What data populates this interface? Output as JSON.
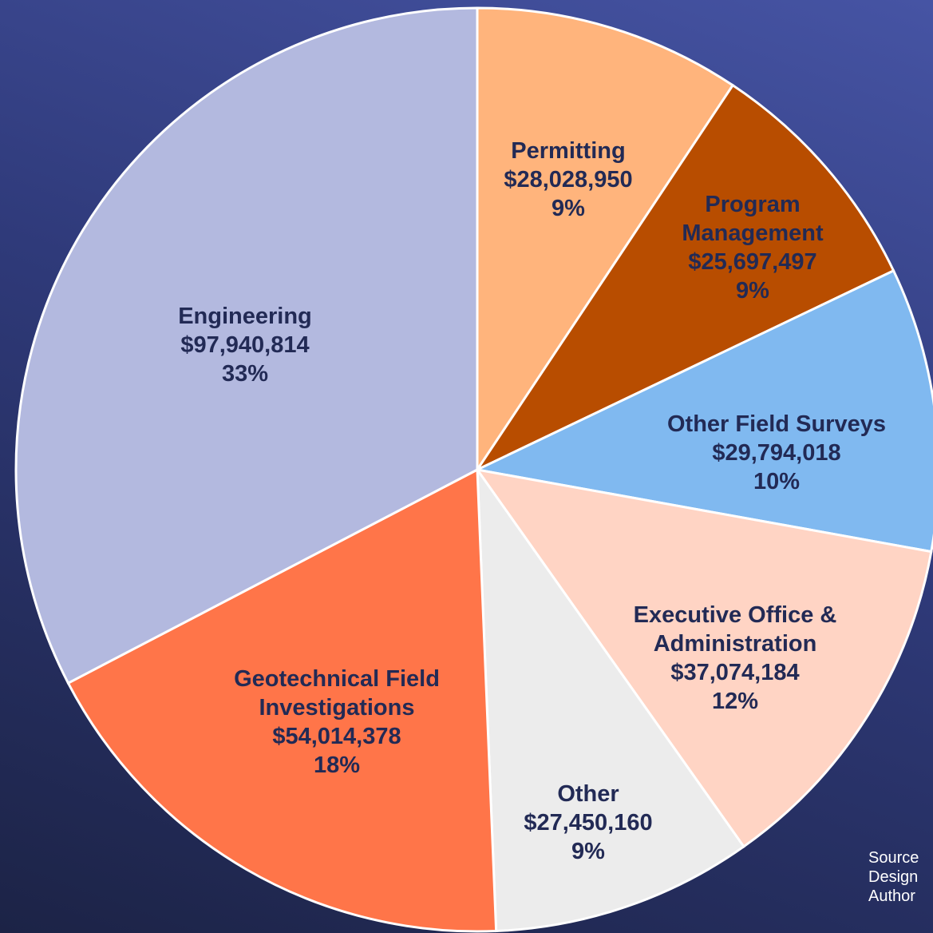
{
  "chart_data": {
    "type": "pie",
    "categories": [
      "Permitting",
      "Program Management",
      "Other Field Surveys",
      "Executive Office & Administration",
      "Other",
      "Geotechnical Field Investigations",
      "Engineering"
    ],
    "values": [
      28028950,
      25697497,
      29794018,
      37074184,
      27450160,
      54014378,
      97940814
    ],
    "value_labels": [
      "$28,028,950",
      "$25,697,497",
      "$29,794,018",
      "$37,074,184",
      "$27,450,160",
      "$54,014,378",
      "$97,940,814"
    ],
    "percent_labels": [
      "9%",
      "9%",
      "10%",
      "12%",
      "9%",
      "18%",
      "33%"
    ],
    "colors": [
      "#ffb47c",
      "#b84d00",
      "#80b9f0",
      "#ffd4c4",
      "#ececec",
      "#ff7549",
      "#b3b9df"
    ],
    "start_angle": 90,
    "direction": "clockwise",
    "footnote": [
      "Source",
      "Design",
      "Author"
    ]
  }
}
